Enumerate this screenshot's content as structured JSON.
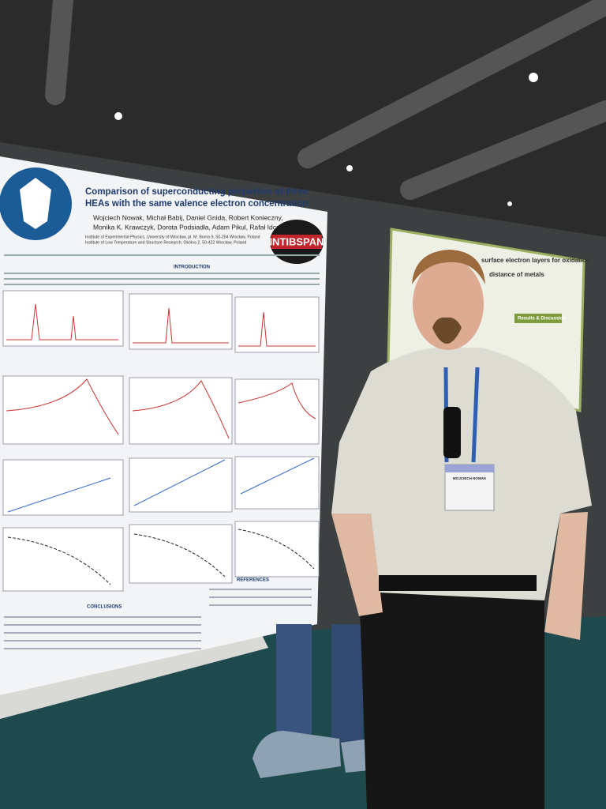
{
  "poster": {
    "title_lines": [
      "Comparison of superconducting properties of three",
      "HEAs with the same valence electron concentration"
    ],
    "author_lines": [
      "Wojciech Nowak, Michał Babij, Daniel Gnida, Robert Konieczny,",
      "Monika K. Krawczyk, Dorota Podsiadła, Adam Pikul, Rafał Idczak"
    ],
    "affiliations": [
      "Institute of Experimental Physics, University of Wrocław, pl. M. Borna 9, 50-204 Wrocław, Poland",
      "Institute of Low Temperature and Structure Research, Okólna 2, 50-422 Wrocław, Poland"
    ],
    "logo": "INTIBSPAN",
    "sections": [
      "INTRODUCTION",
      "CONCLUSIONS",
      "REFERENCES"
    ]
  },
  "second_poster": {
    "title": "surface electron layers for oxidation",
    "subtitle": "distance of metals",
    "section": "Results & Discussion"
  },
  "badge": {
    "name": "WOJCIECH NOWAK"
  }
}
